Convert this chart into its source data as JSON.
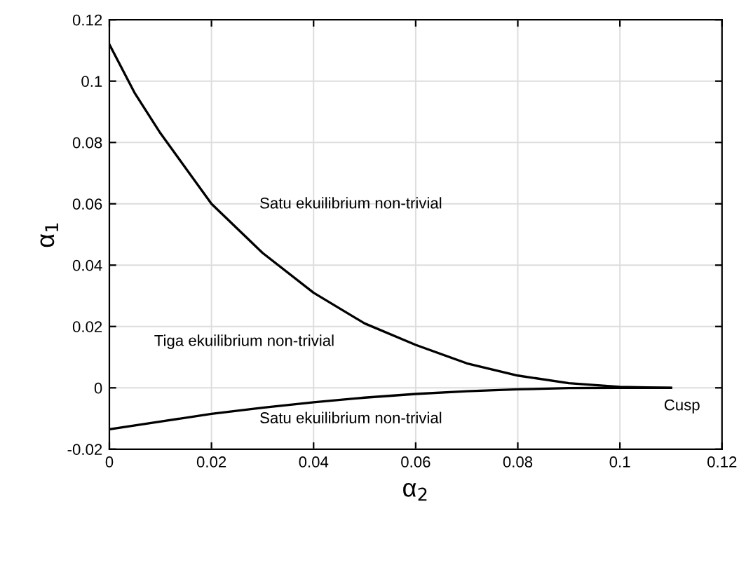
{
  "chart_data": {
    "type": "line",
    "xlabel": "α$_{2}$",
    "ylabel": "α$_{1}$",
    "series": [
      {
        "color": "#000000",
        "x": [
          0,
          0.005,
          0.01,
          0.02,
          0.03,
          0.04,
          0.05,
          0.06,
          0.07,
          0.08,
          0.09,
          0.1,
          0.11
        ],
        "values": [
          0.112,
          0.096,
          0.083,
          0.06,
          0.044,
          0.031,
          0.021,
          0.014,
          0.008,
          0.004,
          0.0015,
          0.0003,
          0
        ]
      },
      {
        "color": "#000000",
        "x": [
          0,
          0.01,
          0.02,
          0.03,
          0.04,
          0.05,
          0.06,
          0.07,
          0.08,
          0.09,
          0.1,
          0.11
        ],
        "values": [
          -0.0135,
          -0.011,
          -0.0085,
          -0.0065,
          -0.0047,
          -0.0032,
          -0.002,
          -0.0011,
          -0.0005,
          -0.0001,
          0,
          0
        ]
      }
    ],
    "annotations": [
      "Satu ekuilibrium non-trivial",
      "Tiga ekuilibrium non-trivial",
      "Satu ekuilibrium non-trivial",
      "Cusp"
    ],
    "xlim": [
      0,
      0.12
    ],
    "xticks": [
      0,
      0.02,
      0.04,
      0.06,
      0.08,
      0.1,
      0.12
    ],
    "ylim": [
      -0.02,
      0.12
    ],
    "yticks": [
      -0.02,
      0,
      0.02,
      0.04,
      0.06,
      0.08,
      0.1,
      0.12
    ],
    "grid": true,
    "line_style": "solid",
    "marker": "none"
  }
}
